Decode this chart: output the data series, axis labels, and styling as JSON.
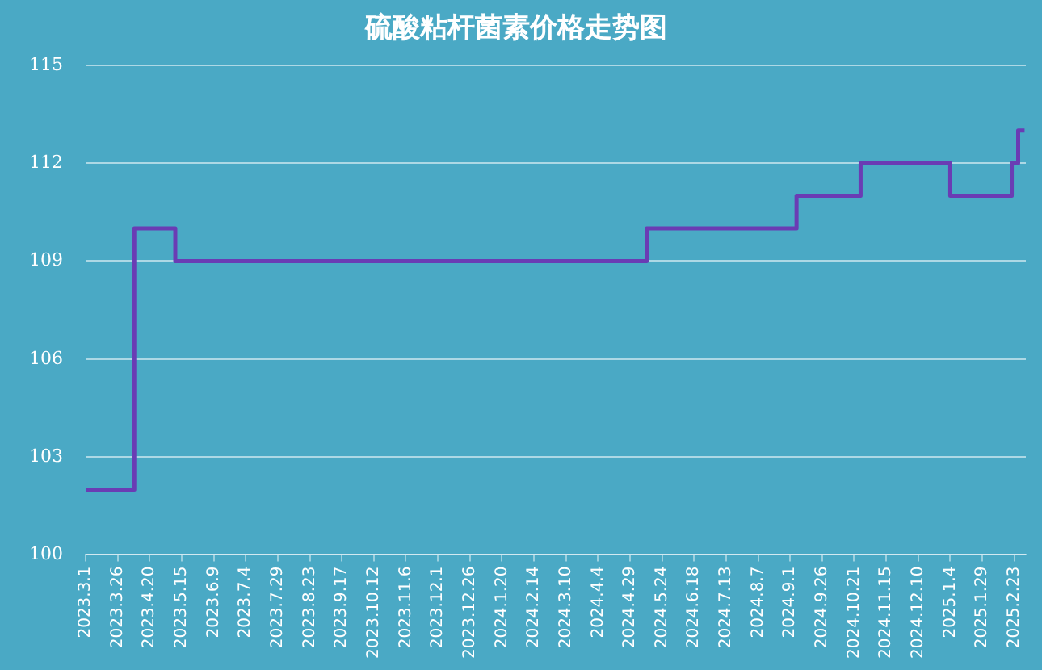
{
  "chart_data": {
    "type": "step",
    "title": "硫酸粘杆菌素价格走势图",
    "series": [
      {
        "color": "#6a3cb4",
        "x": [
          "2023-03-01",
          "2023-04-08",
          "2023-05-10",
          "2024-05-12",
          "2024-09-06",
          "2024-10-26",
          "2025-01-04",
          "2025-02-21",
          "2025-02-26",
          "2025-03-03"
        ],
        "values": [
          102,
          110,
          109,
          110,
          111,
          112,
          111,
          112,
          113,
          113
        ]
      }
    ],
    "xlim": [
      "2023-03-01",
      "2025-03-04"
    ],
    "xticks": [
      {
        "value": "2023-03-01",
        "label": "2023.3.1"
      },
      {
        "value": "2023-03-26",
        "label": "2023.3.26"
      },
      {
        "value": "2023-04-20",
        "label": "2023.4.20"
      },
      {
        "value": "2023-05-15",
        "label": "2023.5.15"
      },
      {
        "value": "2023-06-09",
        "label": "2023.6.9"
      },
      {
        "value": "2023-07-04",
        "label": "2023.7.4"
      },
      {
        "value": "2023-07-29",
        "label": "2023.7.29"
      },
      {
        "value": "2023-08-23",
        "label": "2023.8.23"
      },
      {
        "value": "2023-09-17",
        "label": "2023.9.17"
      },
      {
        "value": "2023-10-12",
        "label": "2023.10.12"
      },
      {
        "value": "2023-11-06",
        "label": "2023.11.6"
      },
      {
        "value": "2023-12-01",
        "label": "2023.12.1"
      },
      {
        "value": "2023-12-26",
        "label": "2023.12.26"
      },
      {
        "value": "2024-01-20",
        "label": "2024.1.20"
      },
      {
        "value": "2024-02-14",
        "label": "2024.2.14"
      },
      {
        "value": "2024-03-10",
        "label": "2024.3.10"
      },
      {
        "value": "2024-04-04",
        "label": "2024.4.4"
      },
      {
        "value": "2024-04-29",
        "label": "2024.4.29"
      },
      {
        "value": "2024-05-24",
        "label": "2024.5.24"
      },
      {
        "value": "2024-06-18",
        "label": "2024.6.18"
      },
      {
        "value": "2024-07-13",
        "label": "2024.7.13"
      },
      {
        "value": "2024-08-07",
        "label": "2024.8.7"
      },
      {
        "value": "2024-09-01",
        "label": "2024.9.1"
      },
      {
        "value": "2024-09-26",
        "label": "2024.9.26"
      },
      {
        "value": "2024-10-21",
        "label": "2024.10.21"
      },
      {
        "value": "2024-11-15",
        "label": "2024.11.15"
      },
      {
        "value": "2024-12-10",
        "label": "2024.12.10"
      },
      {
        "value": "2025-01-04",
        "label": "2025.1.4"
      },
      {
        "value": "2025-01-29",
        "label": "2025.1.29"
      },
      {
        "value": "2025-02-23",
        "label": "2025.2.23"
      }
    ],
    "ylim": [
      100,
      115
    ],
    "yticks": [
      100,
      103,
      106,
      109,
      112,
      115
    ],
    "grid": "y"
  }
}
